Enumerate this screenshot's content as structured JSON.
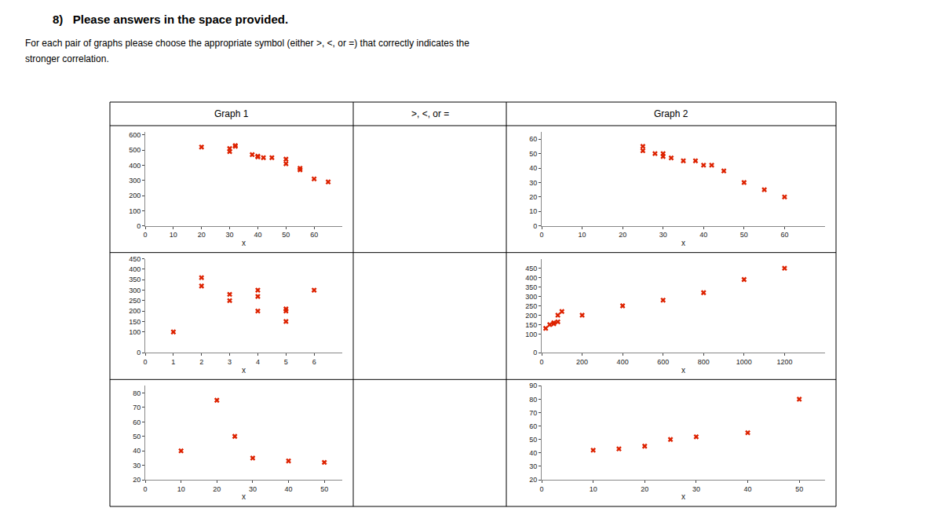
{
  "title": "8)   Please answers in the space provided.",
  "subtitle": [
    "For each pair of graphs please choose the appropriate symbol (either >, <, or =) that correctly indicates the",
    "stronger correlation."
  ],
  "annotations": [
    "Graph 1",
    ">, <, or =",
    "Graph 2"
  ],
  "chart_data": [
    {
      "type": "scatter",
      "x": [
        20,
        30,
        30,
        32,
        32,
        38,
        40,
        40,
        42,
        45,
        50,
        50,
        55,
        55,
        60,
        65
      ],
      "values": [
        520,
        510,
        490,
        530,
        525,
        470,
        460,
        455,
        450,
        450,
        440,
        410,
        380,
        370,
        310,
        290
      ],
      "xlabel": "x",
      "xlim": [
        0,
        70
      ],
      "ylim": [
        0,
        620
      ],
      "xticks": [
        0,
        10,
        20,
        30,
        40,
        50,
        60
      ],
      "yticks": [
        0,
        100,
        200,
        300,
        400,
        500,
        600
      ],
      "color": "#dd2200",
      "marker": "x",
      "grid": false
    },
    {
      "type": "scatter",
      "x": [
        25,
        25,
        28,
        30,
        30,
        32,
        35,
        38,
        40,
        42,
        45,
        50,
        55,
        60
      ],
      "values": [
        55,
        52,
        50,
        50,
        48,
        47,
        45,
        45,
        42,
        42,
        38,
        30,
        25,
        20
      ],
      "xlabel": "x",
      "xlim": [
        0,
        70
      ],
      "ylim": [
        0,
        65
      ],
      "xticks": [
        0,
        10,
        20,
        30,
        40,
        50,
        60
      ],
      "yticks": [
        0,
        10,
        20,
        30,
        40,
        50,
        60
      ],
      "color": "#dd2200",
      "marker": "x",
      "grid": false
    },
    {
      "type": "scatter",
      "x": [
        1,
        2,
        2,
        3,
        3,
        4,
        4,
        4,
        5,
        5,
        5,
        6
      ],
      "values": [
        100,
        320,
        360,
        250,
        280,
        200,
        270,
        300,
        150,
        200,
        210,
        300
      ],
      "xlabel": "x",
      "xlim": [
        0,
        7
      ],
      "ylim": [
        0,
        450
      ],
      "xticks": [
        0,
        1,
        2,
        3,
        4,
        5,
        6
      ],
      "yticks": [
        0,
        100,
        150,
        200,
        250,
        300,
        350,
        400,
        450
      ],
      "color": "#dd2200",
      "marker": "x",
      "grid": false
    },
    {
      "type": "scatter",
      "x": [
        20,
        40,
        60,
        60,
        80,
        80,
        100,
        200,
        400,
        600,
        800,
        1000,
        1200
      ],
      "values": [
        130,
        150,
        155,
        160,
        165,
        200,
        220,
        200,
        250,
        280,
        320,
        390,
        450
      ],
      "xlabel": "x",
      "xlim": [
        0,
        1400
      ],
      "ylim": [
        0,
        500
      ],
      "xticks": [
        0,
        200,
        400,
        600,
        800,
        1000,
        1200
      ],
      "yticks": [
        0,
        100,
        150,
        200,
        250,
        300,
        350,
        400,
        450
      ],
      "color": "#dd2200",
      "marker": "x",
      "grid": false
    },
    {
      "type": "scatter",
      "x": [
        10,
        20,
        25,
        30,
        40,
        50
      ],
      "values": [
        40,
        75,
        50,
        35,
        33,
        32
      ],
      "xlabel": "x",
      "xlim": [
        0,
        55
      ],
      "ylim": [
        20,
        85
      ],
      "xticks": [
        0,
        10,
        20,
        30,
        40,
        50
      ],
      "yticks": [
        20,
        30,
        40,
        50,
        60,
        70,
        80
      ],
      "color": "#dd2200",
      "marker": "x",
      "grid": false
    },
    {
      "type": "scatter",
      "x": [
        10,
        15,
        20,
        25,
        30,
        40,
        50
      ],
      "values": [
        42,
        43,
        45,
        50,
        52,
        55,
        80
      ],
      "xlabel": "x",
      "xlim": [
        0,
        55
      ],
      "ylim": [
        20,
        90
      ],
      "xticks": [
        0,
        10,
        20,
        30,
        40,
        50
      ],
      "yticks": [
        20,
        30,
        40,
        50,
        60,
        70,
        80,
        90
      ],
      "color": "#dd2200",
      "marker": "x",
      "grid": false
    }
  ]
}
